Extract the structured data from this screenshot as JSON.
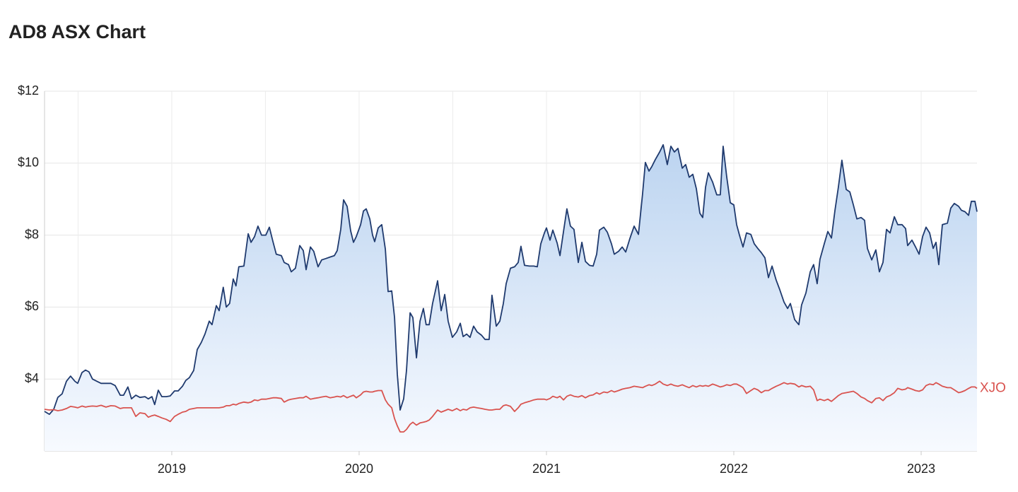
{
  "chart_data": {
    "type": "line",
    "title": "AD8 ASX Chart",
    "x": [
      2018.321,
      2018.347,
      2018.37,
      2018.392,
      2018.415,
      2018.438,
      2018.46,
      2018.483,
      2018.498,
      2018.521,
      2018.54,
      2018.558,
      2018.577,
      2018.6,
      2018.623,
      2018.649,
      2018.675,
      2018.698,
      2018.725,
      2018.743,
      2018.766,
      2018.785,
      2018.808,
      2018.83,
      2018.857,
      2018.875,
      2018.894,
      2018.909,
      2018.928,
      2018.947,
      2018.97,
      2018.992,
      2019.015,
      2019.034,
      2019.057,
      2019.075,
      2019.094,
      2019.117,
      2019.136,
      2019.158,
      2019.177,
      2019.2,
      2019.215,
      2019.238,
      2019.253,
      2019.275,
      2019.291,
      2019.309,
      2019.328,
      2019.343,
      2019.358,
      2019.385,
      2019.408,
      2019.423,
      2019.442,
      2019.46,
      2019.479,
      2019.502,
      2019.521,
      2019.54,
      2019.558,
      2019.585,
      2019.6,
      2019.623,
      2019.638,
      2019.66,
      2019.683,
      2019.702,
      2019.717,
      2019.74,
      2019.758,
      2019.781,
      2019.8,
      2019.823,
      2019.845,
      2019.868,
      2019.883,
      2019.902,
      2019.917,
      2019.936,
      2019.955,
      2019.97,
      2019.985,
      2020.008,
      2020.023,
      2020.038,
      2020.057,
      2020.072,
      2020.083,
      2020.102,
      2020.121,
      2020.14,
      2020.155,
      2020.174,
      2020.189,
      2020.204,
      2020.219,
      2020.238,
      2020.253,
      2020.272,
      2020.287,
      2020.306,
      2020.325,
      2020.343,
      2020.358,
      2020.374,
      2020.392,
      2020.419,
      2020.438,
      2020.457,
      2020.475,
      2020.498,
      2020.521,
      2020.54,
      2020.555,
      2020.574,
      2020.592,
      2020.611,
      2020.63,
      2020.653,
      2020.672,
      2020.694,
      2020.709,
      2020.732,
      2020.751,
      2020.77,
      2020.785,
      2020.808,
      2020.83,
      2020.849,
      2020.864,
      2020.883,
      2020.909,
      2020.932,
      2020.951,
      2020.97,
      2020.989,
      2021.0,
      2021.019,
      2021.034,
      2021.057,
      2021.072,
      2021.091,
      2021.109,
      2021.128,
      2021.147,
      2021.17,
      2021.189,
      2021.208,
      2021.23,
      2021.249,
      2021.268,
      2021.283,
      2021.306,
      2021.325,
      2021.347,
      2021.362,
      2021.385,
      2021.404,
      2021.423,
      2021.445,
      2021.468,
      2021.491,
      2021.513,
      2021.528,
      2021.547,
      2021.562,
      2021.581,
      2021.604,
      2021.623,
      2021.645,
      2021.664,
      2021.683,
      2021.702,
      2021.725,
      2021.743,
      2021.762,
      2021.781,
      2021.8,
      2021.819,
      2021.834,
      2021.849,
      2021.864,
      2021.887,
      2021.909,
      2021.928,
      2021.943,
      2021.962,
      2021.981,
      2022.0,
      2022.015,
      2022.03,
      2022.049,
      2022.068,
      2022.091,
      2022.109,
      2022.128,
      2022.147,
      2022.166,
      2022.185,
      2022.204,
      2022.226,
      2022.245,
      2022.268,
      2022.287,
      2022.302,
      2022.325,
      2022.347,
      2022.362,
      2022.385,
      2022.408,
      2022.426,
      2022.445,
      2022.46,
      2022.483,
      2022.502,
      2022.521,
      2022.54,
      2022.558,
      2022.577,
      2022.6,
      2022.619,
      2022.638,
      2022.657,
      2022.679,
      2022.698,
      2022.713,
      2022.736,
      2022.758,
      2022.777,
      2022.796,
      2022.815,
      2022.834,
      2022.857,
      2022.875,
      2022.898,
      2022.917,
      2022.928,
      2022.951,
      2022.97,
      2022.989,
      2023.008,
      2023.026,
      2023.045,
      2023.064,
      2023.079,
      2023.094,
      2023.113,
      2023.14,
      2023.158,
      2023.177,
      2023.2,
      2023.215,
      2023.234,
      2023.253,
      2023.268,
      2023.287,
      2023.298
    ],
    "series": [
      {
        "color": "#1f3a6e",
        "values": [
          3.1,
          3.02,
          3.16,
          3.49,
          3.59,
          3.94,
          4.08,
          3.94,
          3.88,
          4.18,
          4.25,
          4.2,
          4.0,
          3.94,
          3.88,
          3.88,
          3.88,
          3.82,
          3.55,
          3.55,
          3.78,
          3.45,
          3.55,
          3.49,
          3.51,
          3.45,
          3.51,
          3.29,
          3.69,
          3.51,
          3.51,
          3.53,
          3.67,
          3.67,
          3.8,
          3.96,
          4.04,
          4.24,
          4.82,
          5.02,
          5.25,
          5.61,
          5.51,
          6.04,
          5.9,
          6.55,
          6.0,
          6.1,
          6.78,
          6.59,
          7.12,
          7.14,
          8.04,
          7.8,
          7.96,
          8.25,
          8.0,
          8.0,
          8.22,
          7.82,
          7.47,
          7.43,
          7.24,
          7.18,
          6.98,
          7.08,
          7.71,
          7.57,
          7.04,
          7.67,
          7.55,
          7.12,
          7.31,
          7.35,
          7.39,
          7.43,
          7.57,
          8.16,
          8.98,
          8.8,
          8.12,
          7.8,
          7.96,
          8.29,
          8.67,
          8.73,
          8.45,
          8.0,
          7.82,
          8.2,
          8.29,
          7.61,
          6.43,
          6.45,
          5.71,
          4.14,
          3.14,
          3.45,
          4.24,
          5.84,
          5.71,
          4.59,
          5.61,
          5.96,
          5.51,
          5.51,
          6.1,
          6.73,
          5.9,
          6.35,
          5.61,
          5.16,
          5.31,
          5.55,
          5.18,
          5.25,
          5.16,
          5.47,
          5.31,
          5.22,
          5.1,
          5.1,
          6.33,
          5.47,
          5.61,
          6.1,
          6.65,
          7.08,
          7.12,
          7.24,
          7.69,
          7.16,
          7.14,
          7.14,
          7.12,
          7.76,
          8.06,
          8.2,
          7.86,
          8.14,
          7.78,
          7.43,
          8.1,
          8.73,
          8.25,
          8.16,
          7.24,
          7.8,
          7.27,
          7.16,
          7.14,
          7.47,
          8.14,
          8.22,
          8.08,
          7.76,
          7.47,
          7.55,
          7.67,
          7.53,
          7.9,
          8.25,
          8.02,
          9.14,
          10.02,
          9.78,
          9.9,
          10.1,
          10.31,
          10.51,
          9.96,
          10.47,
          10.31,
          10.41,
          9.86,
          9.96,
          9.61,
          9.69,
          9.29,
          8.61,
          8.49,
          9.33,
          9.73,
          9.47,
          9.12,
          9.12,
          10.47,
          9.63,
          8.9,
          8.84,
          8.29,
          8.0,
          7.67,
          8.06,
          8.02,
          7.76,
          7.63,
          7.51,
          7.37,
          6.82,
          7.14,
          6.75,
          6.49,
          6.14,
          5.96,
          6.1,
          5.65,
          5.51,
          6.06,
          6.39,
          6.98,
          7.18,
          6.65,
          7.33,
          7.76,
          8.1,
          7.92,
          8.69,
          9.33,
          10.08,
          9.27,
          9.2,
          8.84,
          8.45,
          8.49,
          8.41,
          7.63,
          7.31,
          7.59,
          6.98,
          7.24,
          8.16,
          8.06,
          8.51,
          8.29,
          8.29,
          8.18,
          7.71,
          7.86,
          7.67,
          7.47,
          7.96,
          8.22,
          8.06,
          7.63,
          7.8,
          7.18,
          8.29,
          8.33,
          8.75,
          8.88,
          8.8,
          8.69,
          8.65,
          8.55,
          8.94,
          8.94,
          8.65
        ]
      },
      {
        "name": "XJO",
        "color": "#d9534f",
        "values": [
          3.16,
          3.14,
          3.15,
          3.12,
          3.14,
          3.18,
          3.24,
          3.22,
          3.2,
          3.25,
          3.22,
          3.24,
          3.25,
          3.24,
          3.27,
          3.22,
          3.26,
          3.25,
          3.18,
          3.2,
          3.2,
          3.2,
          2.96,
          3.06,
          3.04,
          2.94,
          2.98,
          3.0,
          2.96,
          2.92,
          2.88,
          2.82,
          2.96,
          3.02,
          3.08,
          3.1,
          3.16,
          3.18,
          3.2,
          3.2,
          3.2,
          3.2,
          3.2,
          3.2,
          3.2,
          3.22,
          3.26,
          3.26,
          3.3,
          3.28,
          3.32,
          3.36,
          3.34,
          3.36,
          3.42,
          3.4,
          3.44,
          3.44,
          3.46,
          3.48,
          3.48,
          3.46,
          3.36,
          3.42,
          3.44,
          3.46,
          3.48,
          3.48,
          3.52,
          3.44,
          3.46,
          3.48,
          3.5,
          3.52,
          3.48,
          3.5,
          3.52,
          3.5,
          3.54,
          3.48,
          3.52,
          3.55,
          3.48,
          3.56,
          3.64,
          3.66,
          3.64,
          3.64,
          3.66,
          3.68,
          3.68,
          3.42,
          3.3,
          3.2,
          2.9,
          2.7,
          2.53,
          2.53,
          2.6,
          2.74,
          2.8,
          2.72,
          2.78,
          2.8,
          2.82,
          2.86,
          2.96,
          3.14,
          3.08,
          3.12,
          3.16,
          3.12,
          3.18,
          3.12,
          3.16,
          3.14,
          3.2,
          3.22,
          3.2,
          3.18,
          3.16,
          3.14,
          3.14,
          3.16,
          3.16,
          3.26,
          3.28,
          3.24,
          3.1,
          3.2,
          3.3,
          3.34,
          3.38,
          3.42,
          3.44,
          3.44,
          3.44,
          3.42,
          3.46,
          3.52,
          3.48,
          3.52,
          3.42,
          3.52,
          3.56,
          3.52,
          3.5,
          3.54,
          3.48,
          3.54,
          3.56,
          3.62,
          3.58,
          3.64,
          3.62,
          3.68,
          3.64,
          3.68,
          3.72,
          3.74,
          3.76,
          3.8,
          3.78,
          3.76,
          3.8,
          3.84,
          3.82,
          3.86,
          3.94,
          3.86,
          3.82,
          3.86,
          3.82,
          3.8,
          3.84,
          3.8,
          3.76,
          3.82,
          3.78,
          3.82,
          3.8,
          3.82,
          3.8,
          3.86,
          3.82,
          3.78,
          3.8,
          3.84,
          3.82,
          3.86,
          3.86,
          3.82,
          3.76,
          3.6,
          3.68,
          3.74,
          3.7,
          3.62,
          3.68,
          3.68,
          3.74,
          3.8,
          3.84,
          3.9,
          3.86,
          3.88,
          3.86,
          3.78,
          3.82,
          3.78,
          3.8,
          3.7,
          3.4,
          3.44,
          3.4,
          3.44,
          3.38,
          3.46,
          3.54,
          3.6,
          3.62,
          3.64,
          3.66,
          3.6,
          3.5,
          3.46,
          3.4,
          3.34,
          3.46,
          3.48,
          3.4,
          3.5,
          3.54,
          3.62,
          3.74,
          3.7,
          3.72,
          3.76,
          3.72,
          3.68,
          3.66,
          3.7,
          3.82,
          3.86,
          3.84,
          3.9,
          3.86,
          3.8,
          3.76,
          3.76,
          3.7,
          3.62,
          3.64,
          3.68,
          3.74,
          3.78,
          3.78,
          3.74
        ]
      }
    ],
    "xlim": [
      2018.321,
      2023.298
    ],
    "xticks": [
      2019,
      2020,
      2021,
      2022,
      2023
    ],
    "x_minor_ticks": [
      2018.5,
      2019.5,
      2020.5,
      2021.5,
      2022.5
    ],
    "ylim": [
      2,
      12
    ],
    "yticks": [
      {
        "value": 4,
        "label": "$4"
      },
      {
        "value": 6,
        "label": "$6"
      },
      {
        "value": 8,
        "label": "$8"
      },
      {
        "value": 10,
        "label": "$10"
      },
      {
        "value": 12,
        "label": "$12"
      }
    ],
    "grid": true,
    "area": true
  }
}
